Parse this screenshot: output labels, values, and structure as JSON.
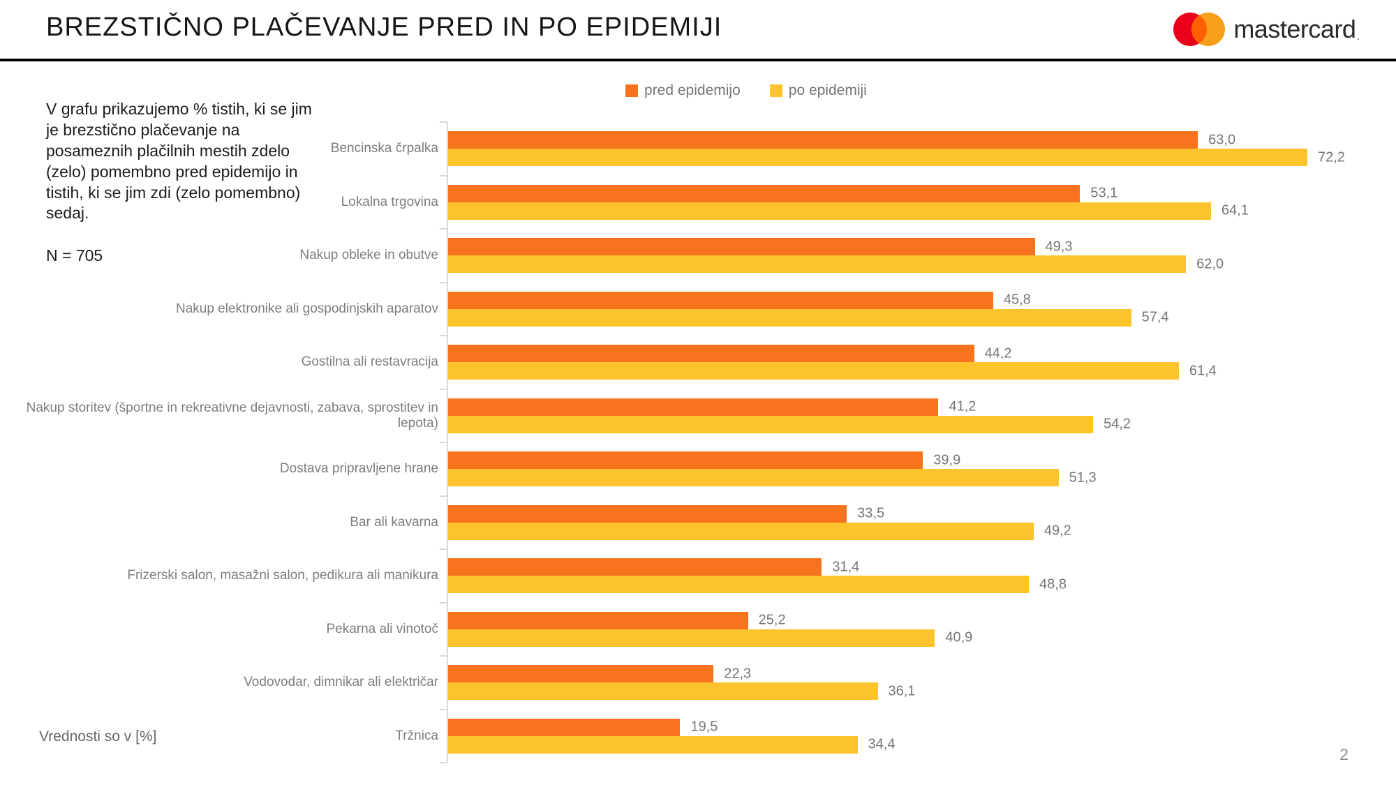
{
  "header": {
    "title": "BREZSTIČNO PLAČEVANJE PRED IN PO EPIDEMIJI",
    "brand": {
      "name": "mastercard",
      "mark": ".",
      "circle_red": "#EB001B",
      "circle_orange": "#F79E1B",
      "circle_overlap": "#FF5F00"
    }
  },
  "intro": {
    "paragraph": "V grafu prikazujemo % tistih, ki se jim je brezstično plačevanje na posameznih plačilnih mestih zdelo (zelo) pomembno pred epidemijo in tistih, ki se jim zdi (zelo pomembno) sedaj.",
    "sample": "N = 705"
  },
  "chart_data": {
    "type": "bar",
    "orientation": "horizontal",
    "title": "",
    "xlabel": "",
    "ylabel": "",
    "xlim": [
      0,
      77
    ],
    "grid": false,
    "legend_position": "top",
    "value_label_decimal": "comma",
    "categories": [
      "Bencinska črpalka",
      "Lokalna trgovina",
      "Nakup obleke in obutve",
      "Nakup elektronike ali gospodinjskih aparatov",
      "Gostilna ali restavracija",
      "Nakup storitev (športne in rekreativne dejavnosti, zabava, sprostitev in lepota)",
      "Dostava pripravljene hrane",
      "Bar ali kavarna",
      "Frizerski salon, masažni salon, pedikura ali manikura",
      "Pekarna ali vinotoč",
      "Vodovodar, dimnikar ali električar",
      "Tržnica"
    ],
    "series": [
      {
        "name": "pred epidemijo",
        "color": "#F8731D",
        "values": [
          63.0,
          53.1,
          49.3,
          45.8,
          44.2,
          41.2,
          39.9,
          33.5,
          31.4,
          25.2,
          22.3,
          19.5
        ]
      },
      {
        "name": "po epidemiji",
        "color": "#FDC32D",
        "values": [
          72.2,
          64.1,
          62.0,
          57.4,
          61.4,
          54.2,
          51.3,
          49.2,
          48.8,
          40.9,
          36.1,
          34.4
        ]
      }
    ]
  },
  "footer": {
    "note": "Vrednosti so v [%]",
    "page": "2"
  }
}
